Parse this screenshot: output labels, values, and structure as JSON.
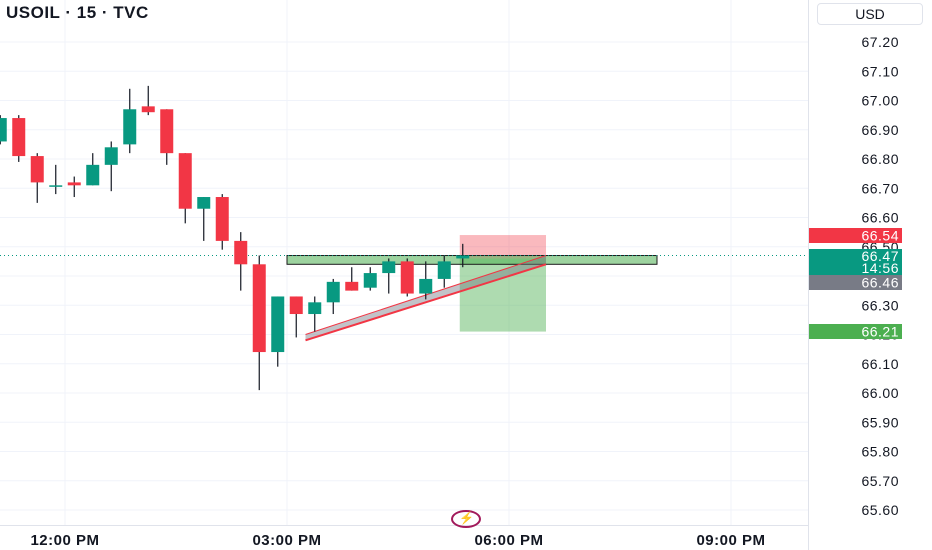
{
  "header": {
    "title": "USOIL · 15 · TVC",
    "currency": "USD"
  },
  "chart_data": {
    "type": "candlestick",
    "symbol": "USOIL",
    "timeframe": "15",
    "source": "TVC",
    "currency": "USD",
    "y_ticks": [
      "67.20",
      "67.10",
      "67.00",
      "66.90",
      "66.80",
      "66.70",
      "66.60",
      "66.50",
      "66.40",
      "66.30",
      "66.20",
      "66.10",
      "66.00",
      "65.90",
      "65.80",
      "65.70",
      "65.60"
    ],
    "ylim": [
      65.56,
      67.29
    ],
    "x_ticks": [
      "12:00 PM",
      "03:00 PM",
      "06:00 PM",
      "09:00 PM"
    ],
    "x_tick_hours": [
      12,
      15,
      18,
      21
    ],
    "xlim_hours": [
      11.0,
      21.8
    ],
    "candles": [
      {
        "t": 11.125,
        "o": 66.86,
        "h": 66.95,
        "l": 66.85,
        "c": 66.94
      },
      {
        "t": 11.375,
        "o": 66.94,
        "h": 66.95,
        "l": 66.79,
        "c": 66.81
      },
      {
        "t": 11.625,
        "o": 66.81,
        "h": 66.82,
        "l": 66.65,
        "c": 66.72
      },
      {
        "t": 11.875,
        "o": 66.71,
        "h": 66.78,
        "l": 66.68,
        "c": 66.71
      },
      {
        "t": 12.125,
        "o": 66.72,
        "h": 66.74,
        "l": 66.67,
        "c": 66.71
      },
      {
        "t": 12.375,
        "o": 66.71,
        "h": 66.82,
        "l": 66.71,
        "c": 66.78
      },
      {
        "t": 12.625,
        "o": 66.78,
        "h": 66.86,
        "l": 66.69,
        "c": 66.84
      },
      {
        "t": 12.875,
        "o": 66.85,
        "h": 67.04,
        "l": 66.82,
        "c": 66.97
      },
      {
        "t": 13.125,
        "o": 66.98,
        "h": 67.05,
        "l": 66.95,
        "c": 66.96
      },
      {
        "t": 13.375,
        "o": 66.97,
        "h": 66.97,
        "l": 66.78,
        "c": 66.82
      },
      {
        "t": 13.625,
        "o": 66.82,
        "h": 66.82,
        "l": 66.58,
        "c": 66.63
      },
      {
        "t": 13.875,
        "o": 66.63,
        "h": 66.67,
        "l": 66.52,
        "c": 66.67
      },
      {
        "t": 14.125,
        "o": 66.67,
        "h": 66.68,
        "l": 66.49,
        "c": 66.52
      },
      {
        "t": 14.375,
        "o": 66.52,
        "h": 66.55,
        "l": 66.35,
        "c": 66.44
      },
      {
        "t": 14.625,
        "o": 66.44,
        "h": 66.47,
        "l": 66.01,
        "c": 66.14
      },
      {
        "t": 14.875,
        "o": 66.14,
        "h": 66.33,
        "l": 66.09,
        "c": 66.33
      },
      {
        "t": 15.125,
        "o": 66.33,
        "h": 66.33,
        "l": 66.19,
        "c": 66.27
      },
      {
        "t": 15.375,
        "o": 66.27,
        "h": 66.33,
        "l": 66.21,
        "c": 66.31
      },
      {
        "t": 15.625,
        "o": 66.31,
        "h": 66.39,
        "l": 66.27,
        "c": 66.38
      },
      {
        "t": 15.875,
        "o": 66.38,
        "h": 66.43,
        "l": 66.35,
        "c": 66.35
      },
      {
        "t": 16.125,
        "o": 66.36,
        "h": 66.43,
        "l": 66.35,
        "c": 66.41
      },
      {
        "t": 16.375,
        "o": 66.41,
        "h": 66.46,
        "l": 66.34,
        "c": 66.45
      },
      {
        "t": 16.625,
        "o": 66.45,
        "h": 66.46,
        "l": 66.33,
        "c": 66.34
      },
      {
        "t": 16.875,
        "o": 66.34,
        "h": 66.45,
        "l": 66.32,
        "c": 66.39
      },
      {
        "t": 17.125,
        "o": 66.39,
        "h": 66.47,
        "l": 66.36,
        "c": 66.45
      },
      {
        "t": 17.375,
        "o": 66.46,
        "h": 66.51,
        "l": 66.43,
        "c": 66.47
      }
    ],
    "current_price_line": 66.47,
    "position": {
      "side": "long",
      "start_hour": 17.375,
      "end_hour": 18.5,
      "entry": 66.46,
      "stop": 66.54,
      "target": 66.21
    },
    "horizontal_zone": {
      "start_hour": 15.0,
      "end_hour": 20.0,
      "low": 66.44,
      "high": 66.47
    },
    "trendline": {
      "start_hour": 15.25,
      "start_low": 66.18,
      "start_high": 66.2,
      "end_hour": 18.5,
      "end_low": 66.44,
      "end_high": 66.47
    },
    "price_labels": [
      {
        "text": "66.54",
        "color": "#f23645"
      },
      {
        "text": "66.47",
        "color": "#089981"
      },
      {
        "text": "14:56",
        "color": "#089981"
      },
      {
        "text": "66.46",
        "color": "#787b86"
      },
      {
        "text": "66.21",
        "color": "#4caf50"
      }
    ],
    "grid": true,
    "up_color": "#089981",
    "down_color": "#f23645"
  }
}
